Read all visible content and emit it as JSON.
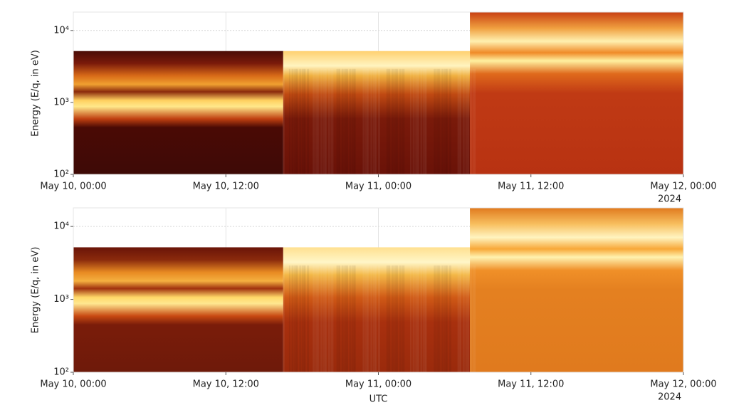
{
  "chart_data": [
    {
      "type": "spectrogram",
      "ylabel": "Energy (E/q, in eV)",
      "log_y": true,
      "ylim": [
        100,
        18000
      ],
      "yticks": [
        {
          "value": 100,
          "label": "10²"
        },
        {
          "value": 1000,
          "label": "10³"
        },
        {
          "value": 10000,
          "label": "10⁴"
        }
      ],
      "xlim": [
        "2024-05-10T00:00",
        "2024-05-12T00:00"
      ],
      "xticks": [
        {
          "value": "2024-05-10T00:00",
          "label": "May 10, 00:00"
        },
        {
          "value": "2024-05-10T12:00",
          "label": "May 10, 12:00"
        },
        {
          "value": "2024-05-11T00:00",
          "label": "May 11, 00:00"
        },
        {
          "value": "2024-05-11T12:00",
          "label": "May 11, 12:00"
        },
        {
          "value": "2024-05-12T00:00",
          "label": "May 12, 00:00"
        }
      ],
      "x_offset_label": "2024",
      "grid": true
    },
    {
      "type": "spectrogram",
      "ylabel": "Energy (E/q, in eV)",
      "xlabel": "UTC",
      "log_y": true,
      "ylim": [
        100,
        18000
      ],
      "yticks": [
        {
          "value": 100,
          "label": "10²"
        },
        {
          "value": 1000,
          "label": "10³"
        },
        {
          "value": 10000,
          "label": "10⁴"
        }
      ],
      "xlim": [
        "2024-05-10T00:00",
        "2024-05-12T00:00"
      ],
      "xticks": [
        {
          "value": "2024-05-10T00:00",
          "label": "May 10, 00:00"
        },
        {
          "value": "2024-05-10T12:00",
          "label": "May 10, 12:00"
        },
        {
          "value": "2024-05-11T00:00",
          "label": "May 11, 00:00"
        },
        {
          "value": "2024-05-11T12:00",
          "label": "May 11, 12:00"
        },
        {
          "value": "2024-05-12T00:00",
          "label": "May 12, 00:00"
        }
      ],
      "x_offset_label": "2024",
      "grid": true
    }
  ]
}
